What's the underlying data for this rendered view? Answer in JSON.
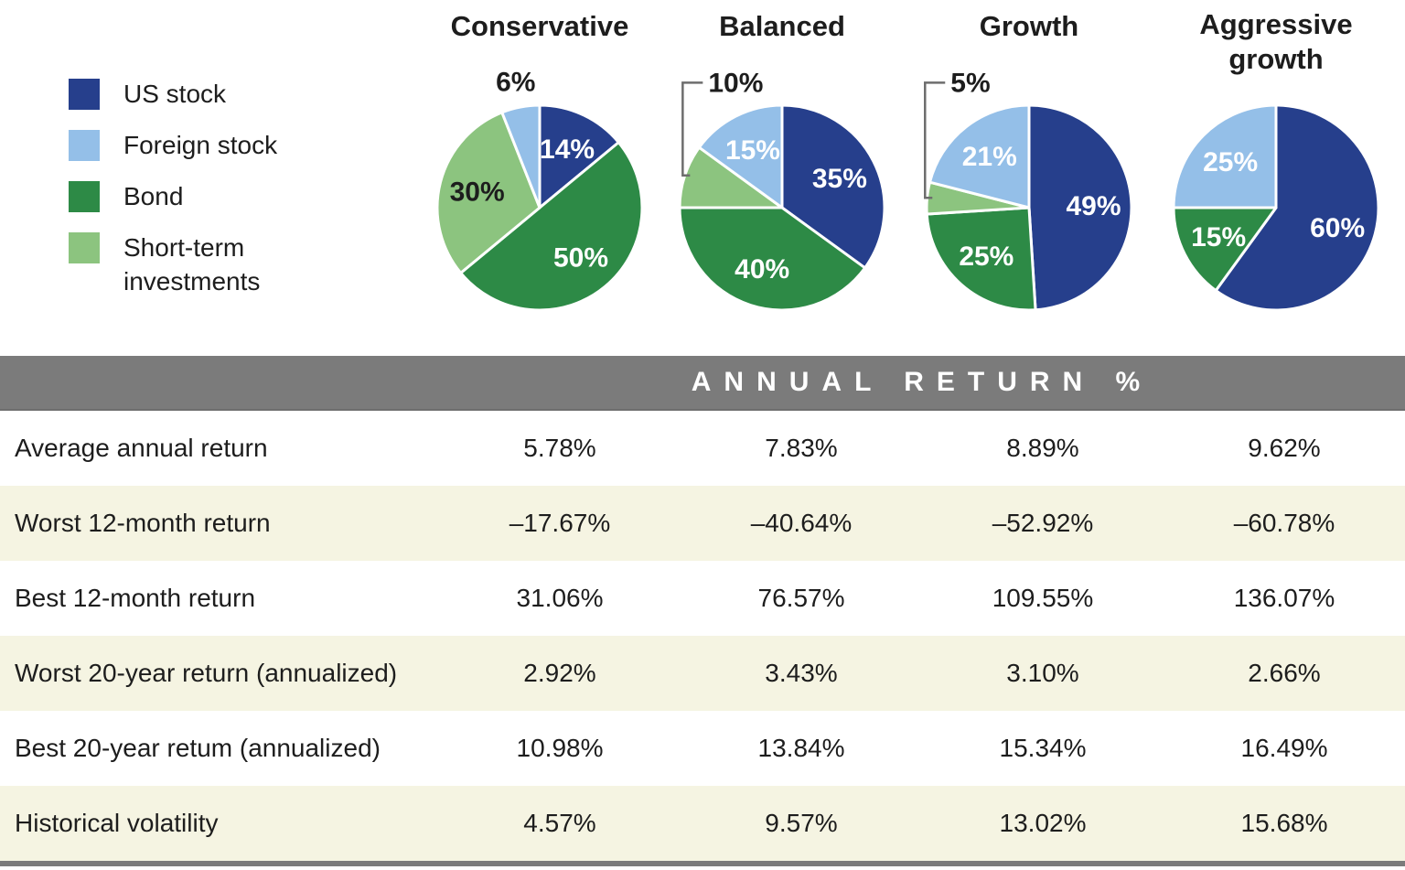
{
  "colors": {
    "us_stock": "#263f8c",
    "foreign_stock": "#94bfe8",
    "bond": "#2d8a46",
    "short_term": "#8cc47f",
    "band_gray": "#7b7b7b",
    "row_stripe": "#f5f4e2",
    "callout_line": "#6d6d6d",
    "text_dark": "#1d1d1d",
    "label_white": "#ffffff"
  },
  "legend": {
    "items": [
      {
        "label": "US stock",
        "color_key": "us_stock"
      },
      {
        "label": "Foreign stock",
        "color_key": "foreign_stock"
      },
      {
        "label": "Bond",
        "color_key": "bond"
      },
      {
        "label": "Short-term investments",
        "color_key": "short_term"
      }
    ]
  },
  "chart_data": [
    {
      "type": "pie",
      "title": "Conservative",
      "labels": [
        "US stock",
        "Bond",
        "Short-term investments",
        "Foreign stock"
      ],
      "values": [
        14,
        50,
        30,
        6
      ],
      "color_keys": [
        "us_stock",
        "bond",
        "short_term",
        "foreign_stock"
      ],
      "label_styles": [
        "inside",
        "inside",
        "inside-dark",
        "outside"
      ],
      "start_angle": 0,
      "direction": "clockwise"
    },
    {
      "type": "pie",
      "title": "Balanced",
      "labels": [
        "US stock",
        "Bond",
        "Short-term investments",
        "Foreign stock"
      ],
      "values": [
        35,
        40,
        10,
        15
      ],
      "color_keys": [
        "us_stock",
        "bond",
        "short_term",
        "foreign_stock"
      ],
      "label_styles": [
        "inside",
        "inside",
        "callout",
        "inside"
      ],
      "start_angle": 0,
      "direction": "clockwise"
    },
    {
      "type": "pie",
      "title": "Growth",
      "labels": [
        "US stock",
        "Bond",
        "Short-term investments",
        "Foreign stock"
      ],
      "values": [
        49,
        25,
        5,
        21
      ],
      "color_keys": [
        "us_stock",
        "bond",
        "short_term",
        "foreign_stock"
      ],
      "label_styles": [
        "inside",
        "inside",
        "callout",
        "inside"
      ],
      "start_angle": 0,
      "direction": "clockwise"
    },
    {
      "type": "pie",
      "title": "Aggressive growth",
      "labels": [
        "US stock",
        "Bond",
        "Foreign stock"
      ],
      "values": [
        60,
        15,
        25
      ],
      "color_keys": [
        "us_stock",
        "bond",
        "foreign_stock"
      ],
      "label_styles": [
        "inside",
        "inside",
        "inside"
      ],
      "start_angle": 0,
      "direction": "clockwise"
    },
    {
      "type": "table",
      "header": "ANNUAL RETURN %",
      "columns": [
        "Conservative",
        "Balanced",
        "Growth",
        "Aggressive growth"
      ],
      "rows": [
        {
          "label": "Average annual return",
          "values": [
            "5.78%",
            "7.83%",
            "8.89%",
            "9.62%"
          ]
        },
        {
          "label": "Worst 12-month return",
          "values": [
            "–17.67%",
            "–40.64%",
            "–52.92%",
            "–60.78%"
          ]
        },
        {
          "label": "Best 12-month return",
          "values": [
            "31.06%",
            "76.57%",
            "109.55%",
            "136.07%"
          ]
        },
        {
          "label": "Worst 20-year return (annualized)",
          "values": [
            "2.92%",
            "3.43%",
            "3.10%",
            "2.66%"
          ]
        },
        {
          "label": "Best 20-year retum (annualized)",
          "values": [
            "10.98%",
            "13.84%",
            "15.34%",
            "16.49%"
          ]
        },
        {
          "label": "Historical volatility",
          "values": [
            "4.57%",
            "9.57%",
            "13.02%",
            "15.68%"
          ]
        }
      ]
    }
  ]
}
